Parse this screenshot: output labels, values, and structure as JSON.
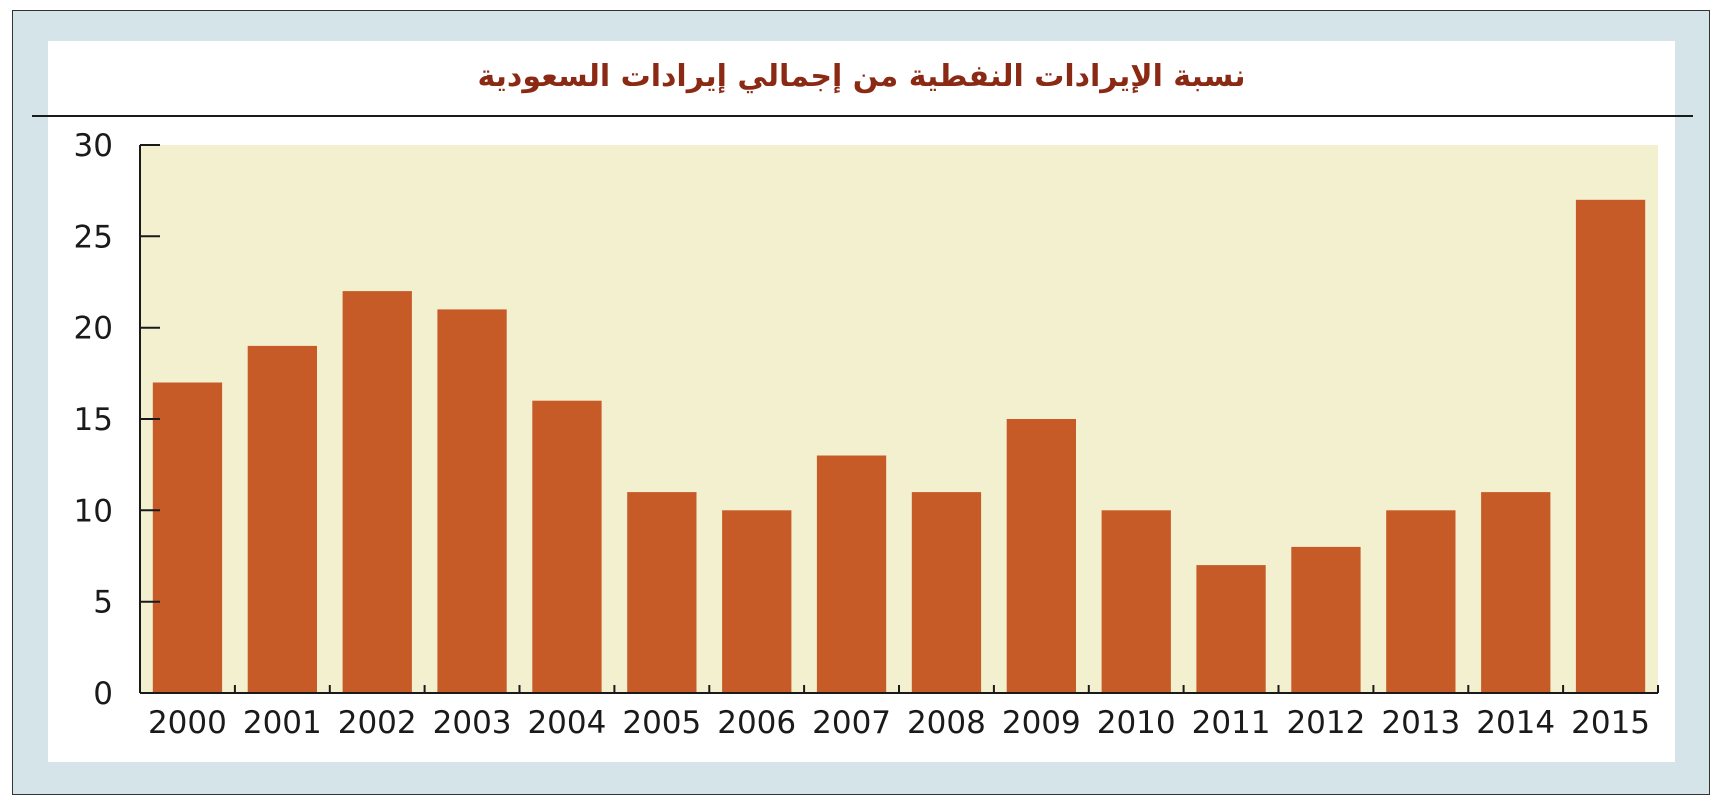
{
  "chart_data": {
    "type": "bar",
    "title": "نسبة الإيرادات النفطية من إجمالي إيرادات السعودية",
    "xlabel": "",
    "ylabel": "",
    "categories": [
      "2000",
      "2001",
      "2002",
      "2003",
      "2004",
      "2005",
      "2006",
      "2007",
      "2008",
      "2009",
      "2010",
      "2011",
      "2012",
      "2013",
      "2014",
      "2015"
    ],
    "values": [
      17,
      19,
      22,
      21,
      16,
      11,
      10,
      13,
      11,
      15,
      10,
      7,
      8,
      10,
      11,
      27
    ],
    "ylim": [
      0,
      30
    ],
    "yticks": [
      "0",
      "5",
      "10",
      "15",
      "20",
      "25",
      "30"
    ],
    "grid": false,
    "legend": "none",
    "colors": {
      "bar": "#c75b28",
      "plot_background": "#f3f0cf",
      "frame": "#d5e4e8",
      "title": "#8b2a14",
      "axis": "#1a1a1a"
    }
  }
}
